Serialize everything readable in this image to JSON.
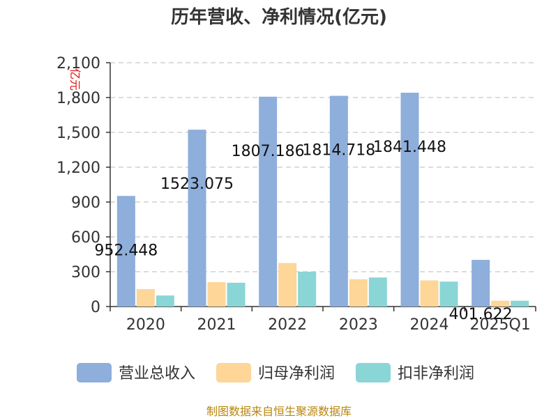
{
  "chart_data": {
    "type": "bar",
    "title": "历年营收、净利情况(亿元)",
    "ylabel": "亿元",
    "categories": [
      "2020",
      "2021",
      "2022",
      "2023",
      "2024",
      "2025Q1"
    ],
    "ylim": [
      0,
      2100
    ],
    "yticks": [
      0,
      300,
      600,
      900,
      1200,
      1500,
      1800,
      2100
    ],
    "ytick_labels": [
      "0",
      "300",
      "600",
      "900",
      "1,200",
      "1,500",
      "1,800",
      "2,100"
    ],
    "grid": true,
    "legend_position": "bottom",
    "series": [
      {
        "name": "营业总收入",
        "color": "#8eaedb",
        "values": [
          952.448,
          1523.075,
          1807.186,
          1814.718,
          1841.448,
          401.622
        ],
        "value_labels": [
          "952.448",
          "1523.075",
          "1807.186",
          "1814.718",
          "1841.448",
          "401.622"
        ]
      },
      {
        "name": "归母净利润",
        "color": "#fdd698",
        "values": [
          150,
          210,
          375,
          235,
          225,
          50
        ]
      },
      {
        "name": "扣非净利润",
        "color": "#8ad5d6",
        "values": [
          95,
          205,
          300,
          250,
          215,
          50
        ]
      }
    ]
  },
  "source": "制图数据来自恒生聚源数据库"
}
